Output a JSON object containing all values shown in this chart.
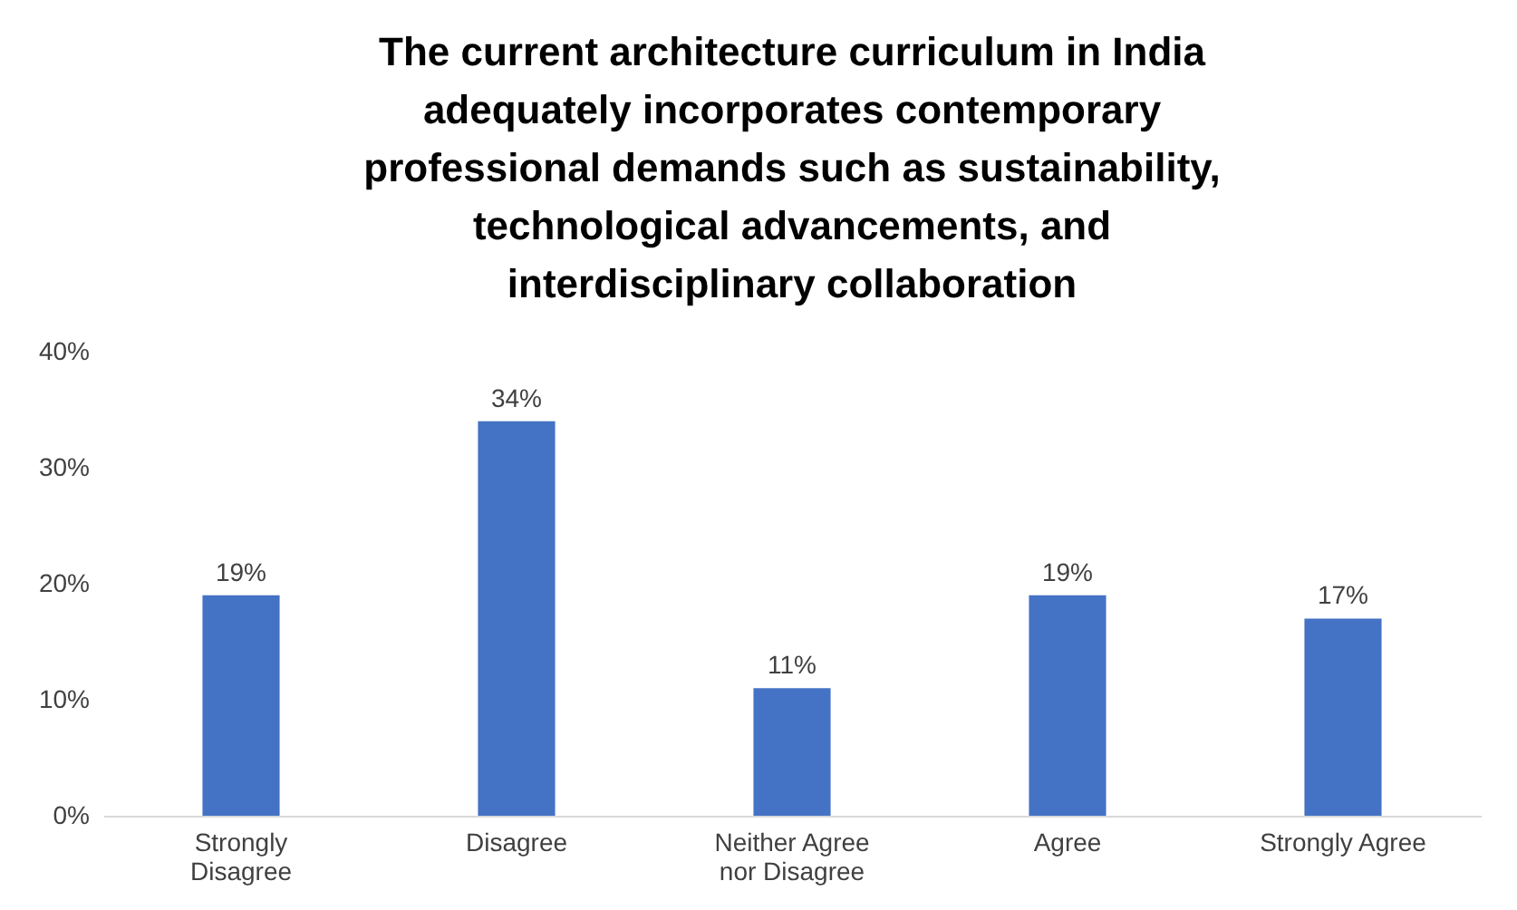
{
  "chart_data": {
    "type": "bar",
    "title": "The current architecture curriculum in India adequately incorporates contemporary professional demands such as sustainability, technological advancements, and interdisciplinary collaboration",
    "categories": [
      "Strongly Disagree",
      "Disagree",
      "Neither Agree nor Disagree",
      "Agree",
      "Strongly Agree"
    ],
    "values": [
      19,
      34,
      11,
      19,
      17
    ],
    "color": "#4472c4",
    "value_labels": [
      "19%",
      "34%",
      "11%",
      "19%",
      "17%"
    ],
    "ylim": [
      0,
      40
    ],
    "yticks": [
      {
        "value": 0,
        "label": "0%"
      },
      {
        "value": 10,
        "label": "10%"
      },
      {
        "value": 20,
        "label": "20%"
      },
      {
        "value": 30,
        "label": "30%"
      },
      {
        "value": 40,
        "label": "40%"
      }
    ],
    "grid": false
  }
}
